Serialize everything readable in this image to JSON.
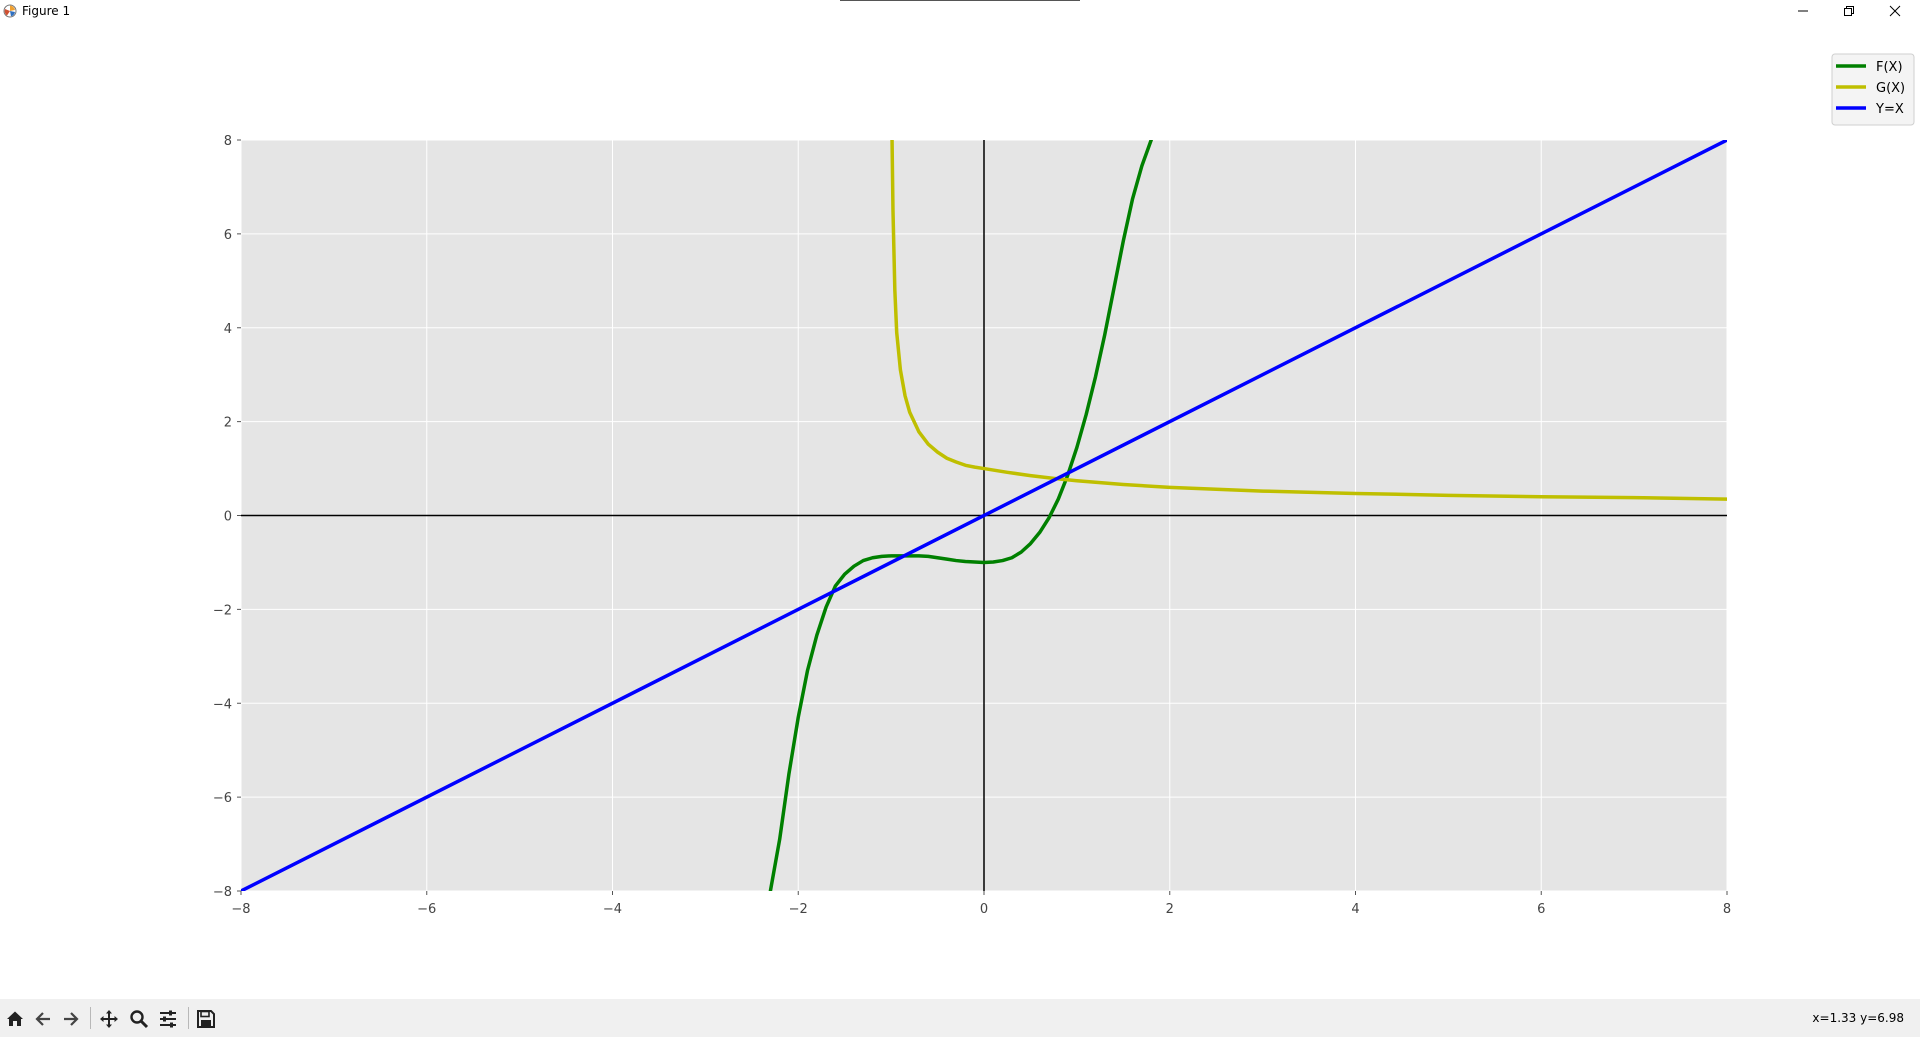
{
  "window": {
    "title": "Figure 1"
  },
  "icons": {
    "app": "matplotlib-icon",
    "minimize": "minimize-icon",
    "maximize": "restore-icon",
    "close": "close-icon",
    "home": "home-icon",
    "back": "arrow-left-icon",
    "forward": "arrow-right-icon",
    "pan": "move-icon",
    "zoom": "magnifier-icon",
    "configure": "sliders-icon",
    "save": "floppy-disk-icon"
  },
  "status": {
    "coords": "x=1.33 y=6.98"
  },
  "colors": {
    "plot_background": "#e5e5e5",
    "grid": "#ffffff",
    "axes_lines": "#000000"
  },
  "chart_data": {
    "type": "line",
    "title": "",
    "xlabel": "",
    "ylabel": "",
    "xlim": [
      -8,
      8
    ],
    "ylim": [
      -8,
      8
    ],
    "x_ticks": [
      -8,
      -6,
      -4,
      -2,
      0,
      2,
      4,
      6,
      8
    ],
    "y_ticks": [
      -8,
      -6,
      -4,
      -2,
      0,
      2,
      4,
      6,
      8
    ],
    "x_tick_labels": [
      "−8",
      "−6",
      "−4",
      "−2",
      "0",
      "2",
      "4",
      "6",
      "8"
    ],
    "y_tick_labels": [
      "−8",
      "−6",
      "−4",
      "−2",
      "0",
      "2",
      "4",
      "6",
      "8"
    ],
    "grid": true,
    "reference_lines": [
      "x=0",
      "y=0"
    ],
    "legend_position": "top-right",
    "series": [
      {
        "name": "F(X)",
        "color": "#008000",
        "points": [
          [
            -2.3,
            -8.0
          ],
          [
            -2.2,
            -6.9
          ],
          [
            -2.1,
            -5.5
          ],
          [
            -2.0,
            -4.3
          ],
          [
            -1.9,
            -3.3
          ],
          [
            -1.8,
            -2.55
          ],
          [
            -1.7,
            -1.95
          ],
          [
            -1.6,
            -1.5
          ],
          [
            -1.5,
            -1.25
          ],
          [
            -1.4,
            -1.08
          ],
          [
            -1.3,
            -0.96
          ],
          [
            -1.2,
            -0.9
          ],
          [
            -1.1,
            -0.87
          ],
          [
            -1.0,
            -0.86
          ],
          [
            -0.9,
            -0.86
          ],
          [
            -0.8,
            -0.86
          ],
          [
            -0.7,
            -0.86
          ],
          [
            -0.6,
            -0.87
          ],
          [
            -0.5,
            -0.9
          ],
          [
            -0.4,
            -0.93
          ],
          [
            -0.3,
            -0.96
          ],
          [
            -0.2,
            -0.98
          ],
          [
            -0.1,
            -0.99
          ],
          [
            0.0,
            -1.0
          ],
          [
            0.1,
            -0.99
          ],
          [
            0.2,
            -0.96
          ],
          [
            0.3,
            -0.9
          ],
          [
            0.4,
            -0.78
          ],
          [
            0.5,
            -0.6
          ],
          [
            0.6,
            -0.36
          ],
          [
            0.7,
            -0.05
          ],
          [
            0.8,
            0.35
          ],
          [
            0.9,
            0.85
          ],
          [
            1.0,
            1.45
          ],
          [
            1.1,
            2.15
          ],
          [
            1.2,
            2.95
          ],
          [
            1.3,
            3.85
          ],
          [
            1.4,
            4.85
          ],
          [
            1.5,
            5.85
          ],
          [
            1.6,
            6.75
          ],
          [
            1.7,
            7.45
          ],
          [
            1.8,
            8.0
          ]
        ]
      },
      {
        "name": "G(X)",
        "color": "#bfbf00",
        "points": [
          [
            -0.99,
            8.0
          ],
          [
            -0.98,
            6.5
          ],
          [
            -0.96,
            4.8
          ],
          [
            -0.94,
            3.9
          ],
          [
            -0.9,
            3.1
          ],
          [
            -0.85,
            2.55
          ],
          [
            -0.8,
            2.2
          ],
          [
            -0.7,
            1.78
          ],
          [
            -0.6,
            1.52
          ],
          [
            -0.5,
            1.35
          ],
          [
            -0.4,
            1.22
          ],
          [
            -0.3,
            1.14
          ],
          [
            -0.2,
            1.07
          ],
          [
            -0.1,
            1.03
          ],
          [
            0.0,
            1.0
          ],
          [
            0.25,
            0.92
          ],
          [
            0.5,
            0.85
          ],
          [
            0.75,
            0.79
          ],
          [
            1.0,
            0.74
          ],
          [
            1.5,
            0.66
          ],
          [
            2.0,
            0.6
          ],
          [
            2.5,
            0.56
          ],
          [
            3.0,
            0.52
          ],
          [
            4.0,
            0.47
          ],
          [
            5.0,
            0.43
          ],
          [
            6.0,
            0.4
          ],
          [
            7.0,
            0.38
          ],
          [
            8.0,
            0.35
          ]
        ]
      },
      {
        "name": "Y=X",
        "color": "#0000ff",
        "points": [
          [
            -8,
            -8
          ],
          [
            8,
            8
          ]
        ]
      }
    ]
  }
}
